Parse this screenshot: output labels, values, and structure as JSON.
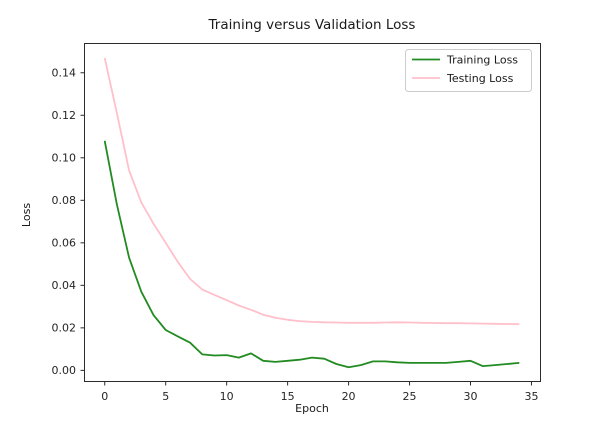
{
  "chart_data": {
    "type": "line",
    "title": "Training versus Validation Loss",
    "xlabel": "Epoch",
    "ylabel": "Loss",
    "grid": false,
    "legend_position": "upper right",
    "xlim": [
      -1.7,
      35.7
    ],
    "ylim": [
      -0.005,
      0.154
    ],
    "xticks": [
      0,
      5,
      10,
      15,
      20,
      25,
      30,
      35
    ],
    "xtick_labels": [
      "0",
      "5",
      "10",
      "15",
      "20",
      "25",
      "30",
      "35"
    ],
    "yticks": [
      0.0,
      0.02,
      0.04,
      0.06,
      0.08,
      0.1,
      0.12,
      0.14
    ],
    "ytick_labels": [
      "0.00",
      "0.02",
      "0.04",
      "0.06",
      "0.08",
      "0.10",
      "0.12",
      "0.14"
    ],
    "x": [
      0,
      1,
      2,
      3,
      4,
      5,
      6,
      7,
      8,
      9,
      10,
      11,
      12,
      13,
      14,
      15,
      16,
      17,
      18,
      19,
      20,
      21,
      22,
      23,
      24,
      25,
      26,
      27,
      28,
      29,
      30,
      31,
      32,
      33,
      34
    ],
    "series": [
      {
        "name": "Training Loss",
        "color": "#228B22",
        "values": [
          0.108,
          0.078,
          0.053,
          0.037,
          0.026,
          0.019,
          0.016,
          0.013,
          0.0075,
          0.007,
          0.0072,
          0.006,
          0.008,
          0.0045,
          0.004,
          0.0045,
          0.005,
          0.006,
          0.0055,
          0.003,
          0.0015,
          0.0025,
          0.0042,
          0.0042,
          0.0038,
          0.0035,
          0.0035,
          0.0035,
          0.0035,
          0.004,
          0.0045,
          0.002,
          0.0025,
          0.003,
          0.0035
        ]
      },
      {
        "name": "Testing Loss",
        "color": "#FFC0CB",
        "values": [
          0.147,
          0.121,
          0.094,
          0.079,
          0.069,
          0.06,
          0.051,
          0.043,
          0.038,
          0.0355,
          0.033,
          0.0305,
          0.0285,
          0.0262,
          0.0248,
          0.0238,
          0.0232,
          0.0228,
          0.0226,
          0.0225,
          0.0224,
          0.0224,
          0.0224,
          0.0225,
          0.0226,
          0.0225,
          0.0224,
          0.0223,
          0.0222,
          0.0222,
          0.0221,
          0.022,
          0.0219,
          0.0218,
          0.0217
        ]
      }
    ]
  },
  "colors": {
    "background": "#ffffff",
    "spine": "#2b2b2b",
    "text": "#1a1a1a",
    "legend_border": "#cccccc",
    "training_line": "#228B22",
    "testing_line": "#FFC0CB"
  }
}
